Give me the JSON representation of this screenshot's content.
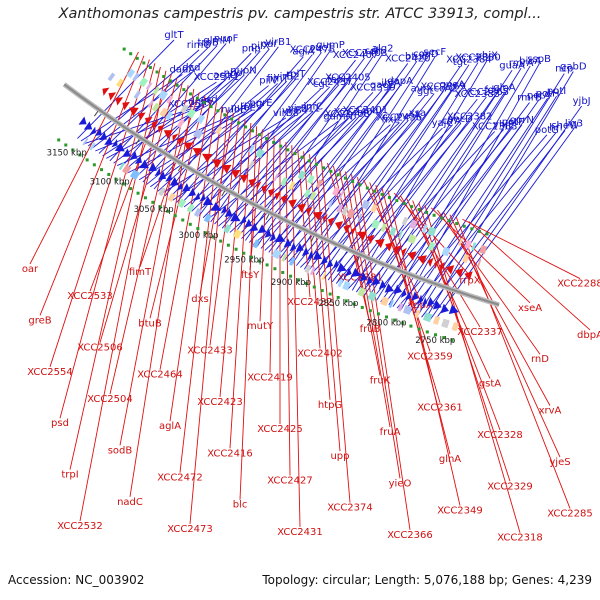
{
  "title": "Xanthomonas campestris pv. campestris str. ATCC 33913, compl...",
  "footer": {
    "accession": "Accession: NC_003902",
    "topology": "Topology: circular; Length: 5,076,188 bp; Genes: 4,239"
  },
  "colors": {
    "forward_strand": "#1a1ad8",
    "reverse_strand": "#e01010",
    "forward_label": "#1010c8",
    "reverse_label": "#d01010",
    "backbone": "#8a8a8a"
  },
  "scale_labels": [
    {
      "text": "3150 kbp",
      "pos": "3150"
    },
    {
      "text": "3100 kbp",
      "pos": "3100"
    },
    {
      "text": "3050 kbp",
      "pos": "3050"
    },
    {
      "text": "3000 kbp",
      "pos": "3000"
    },
    {
      "text": "2950 kbp",
      "pos": "2950"
    },
    {
      "text": "2900 kbp",
      "pos": "2900"
    },
    {
      "text": "2850 kbp",
      "pos": "2850"
    },
    {
      "text": "2800 kbp",
      "pos": "2800"
    },
    {
      "text": "2750 kbp",
      "pos": "2750"
    }
  ],
  "forward_genes": [
    "gltT",
    "dadA",
    "XCC2577",
    "rimO",
    "dcd",
    "dniR",
    "trpB",
    "XCC2571",
    "asd",
    "glmM",
    "accD",
    "nuoE",
    "nuoF",
    "nuoI",
    "nuoL",
    "pnp",
    "nuoN",
    "rpsO",
    "pilX",
    "pilV",
    "purE",
    "oar",
    "fimT",
    "virB8",
    "virB1",
    "virB2",
    "virB4",
    "aglA",
    "rplT",
    "virB11",
    "XCC2475",
    "cgt",
    "infC",
    "suc1",
    "XCC2437",
    "gumN",
    "gumP",
    "fabH",
    "XCC2408",
    "XCC2407",
    "XCC2405",
    "XCC2404",
    "XCC2403",
    "XCC2399",
    "XCC2401",
    "cdh",
    "qacE",
    "fixL",
    "alg2",
    "ihfA",
    "XCC2436",
    "XCC2420",
    "dapA",
    "yveA",
    "btuB",
    "ggt",
    "xsa",
    "coaD",
    "avrXccA2",
    "yajC",
    "secF",
    "XCC2369",
    "cirA",
    "tgt",
    "queA",
    "secD",
    "XCC2384",
    "XCC2383",
    "XCC2382",
    "XCC2380",
    "XCC2365",
    "XCC2363",
    "yhjX",
    "fdsC",
    "yhjE",
    "guaA",
    "glnA",
    "potF",
    "rmrA",
    "rmrB",
    "oprN",
    "bioA",
    "petA",
    "potG",
    "sspB",
    "potH",
    "hrl",
    "ncp",
    "potI",
    "cheW",
    "gabD",
    "yjbJ",
    "lig3"
  ],
  "reverse_genes": [
    "oar",
    "greB",
    "XCC2554",
    "psd",
    "trpI",
    "XCC2532",
    "XCC2533",
    "XCC2506",
    "XCC2504",
    "sodB",
    "nadC",
    "fimT",
    "btuB",
    "XCC2464",
    "aglA",
    "XCC2472",
    "XCC2473",
    "dxs",
    "XCC2433",
    "XCC2423",
    "XCC2416",
    "blc",
    "ftsY",
    "mutY",
    "XCC2419",
    "XCC2425",
    "XCC2427",
    "XCC2431",
    "XCC2432",
    "XCC2402",
    "htpG",
    "upp",
    "XCC2374",
    "XCC2381",
    "fruB",
    "fruK",
    "fruA",
    "yieO",
    "XCC2366",
    "adpA",
    "XCC2359",
    "XCC2361",
    "glnA",
    "XCC2349",
    "rrpX",
    "XCC2337",
    "gstA",
    "XCC2328",
    "XCC2329",
    "XCC2318",
    "xseA",
    "rnD",
    "xrvA",
    "yjeS",
    "XCC2285",
    "XCC2288",
    "dbpA"
  ]
}
